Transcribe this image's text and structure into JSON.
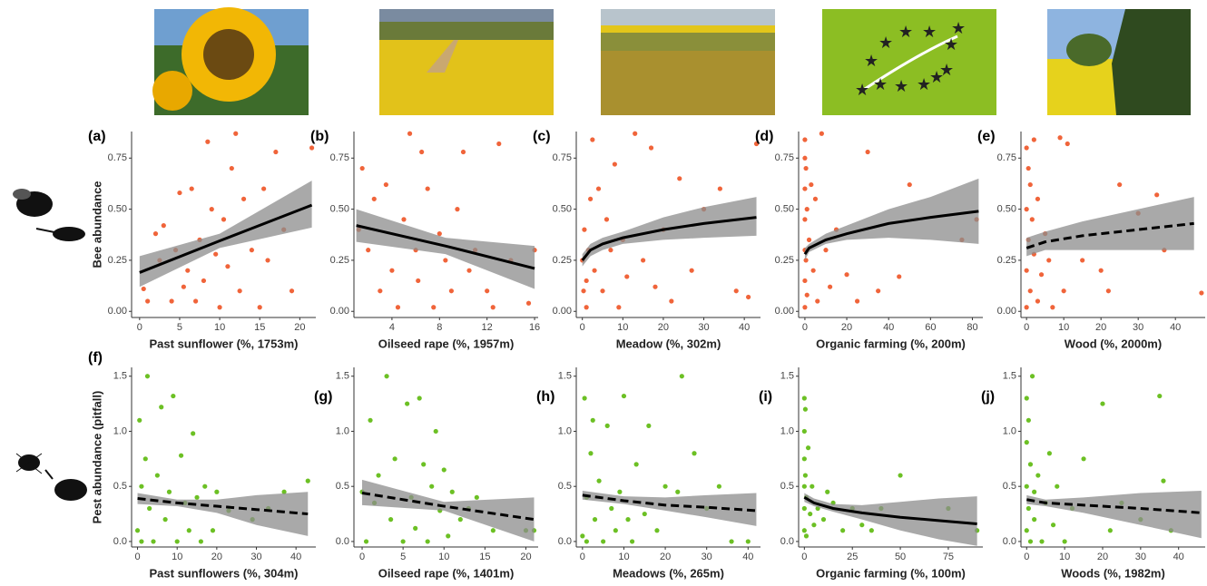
{
  "chart_data": [
    {
      "type": "scatter",
      "label": "(a)",
      "xlabel": "Past sunflower (%, 1753m)",
      "ylabel": "Bee abundance",
      "color": "#f0643a",
      "xlim": [
        -1,
        22
      ],
      "ylim": [
        -0.03,
        0.88
      ],
      "xticks": [
        0,
        5,
        10,
        15,
        20
      ],
      "yticks": [
        {
          "value": 0,
          "label": "0.00"
        },
        {
          "value": 0.25,
          "label": "0.25"
        },
        {
          "value": 0.5,
          "label": "0.50"
        },
        {
          "value": 0.75,
          "label": "0.75"
        }
      ],
      "x": [
        0.5,
        1,
        2,
        2.5,
        3,
        4,
        4.5,
        5,
        5.5,
        6,
        6.5,
        7,
        7.5,
        8,
        8.5,
        9,
        9.5,
        10,
        10.5,
        11,
        11.5,
        12,
        12.5,
        13,
        14,
        15,
        15.5,
        16,
        17,
        18,
        19,
        21.5
      ],
      "values": [
        0.11,
        0.05,
        0.38,
        0.25,
        0.42,
        0.05,
        0.3,
        0.58,
        0.12,
        0.2,
        0.6,
        0.05,
        0.35,
        0.15,
        0.83,
        0.5,
        0.28,
        0.02,
        0.45,
        0.22,
        0.7,
        0.87,
        0.1,
        0.55,
        0.3,
        0.02,
        0.6,
        0.25,
        0.78,
        0.4,
        0.1,
        0.8
      ],
      "fit": {
        "dashed": false,
        "x": [
          0,
          10,
          21.5
        ],
        "values": [
          0.19,
          0.345,
          0.52
        ],
        "lower": [
          0.12,
          0.31,
          0.41
        ],
        "upper": [
          0.27,
          0.38,
          0.64
        ]
      }
    },
    {
      "type": "scatter",
      "label": "(b)",
      "xlabel": "Oilseed rape (%, 1957m)",
      "color": "#f0643a",
      "xlim": [
        0.8,
        16.3
      ],
      "ylim": [
        -0.03,
        0.88
      ],
      "xticks": [
        4,
        8,
        12,
        16
      ],
      "yticks": [
        {
          "value": 0,
          "label": "0.00"
        },
        {
          "value": 0.25,
          "label": "0.25"
        },
        {
          "value": 0.5,
          "label": "0.50"
        },
        {
          "value": 0.75,
          "label": "0.75"
        }
      ],
      "x": [
        1.2,
        1.5,
        2,
        2.5,
        3,
        3.5,
        4,
        4.5,
        5,
        5.5,
        6,
        6.2,
        6.5,
        7,
        7.5,
        8,
        8.5,
        9,
        9.5,
        10,
        10.5,
        11,
        12,
        12.5,
        13,
        14,
        15.5,
        16
      ],
      "values": [
        0.4,
        0.7,
        0.3,
        0.55,
        0.1,
        0.62,
        0.2,
        0.02,
        0.45,
        0.87,
        0.3,
        0.15,
        0.78,
        0.6,
        0.02,
        0.38,
        0.25,
        0.1,
        0.5,
        0.78,
        0.2,
        0.3,
        0.1,
        0.02,
        0.82,
        0.25,
        0.04,
        0.3
      ],
      "fit": {
        "dashed": false,
        "x": [
          1,
          8.5,
          16
        ],
        "values": [
          0.42,
          0.32,
          0.21
        ],
        "lower": [
          0.34,
          0.28,
          0.11
        ],
        "upper": [
          0.5,
          0.36,
          0.32
        ]
      }
    },
    {
      "type": "scatter",
      "label": "(c)",
      "xlabel": "Meadow (%, 302m)",
      "color": "#f0643a",
      "xlim": [
        -1.5,
        44
      ],
      "ylim": [
        -0.03,
        0.88
      ],
      "xticks": [
        0,
        10,
        20,
        30,
        40
      ],
      "yticks": [
        {
          "value": 0,
          "label": "0.00"
        },
        {
          "value": 0.25,
          "label": "0.25"
        },
        {
          "value": 0.5,
          "label": "0.50"
        },
        {
          "value": 0.75,
          "label": "0.75"
        }
      ],
      "x": [
        0,
        0.3,
        0.5,
        1,
        1,
        1.5,
        2,
        2.5,
        3,
        4,
        5,
        6,
        7,
        8,
        9,
        10,
        11,
        13,
        15,
        17,
        18,
        20,
        22,
        24,
        27,
        30,
        34,
        38,
        41,
        43
      ],
      "values": [
        0.25,
        0.1,
        0.4,
        0.15,
        0.02,
        0.3,
        0.55,
        0.84,
        0.2,
        0.6,
        0.1,
        0.45,
        0.3,
        0.72,
        0.02,
        0.35,
        0.17,
        0.87,
        0.25,
        0.8,
        0.12,
        0.4,
        0.05,
        0.65,
        0.2,
        0.5,
        0.6,
        0.1,
        0.07,
        0.82
      ],
      "fit": {
        "dashed": false,
        "x": [
          0,
          2,
          5,
          10,
          20,
          30,
          43
        ],
        "values": [
          0.25,
          0.3,
          0.33,
          0.36,
          0.4,
          0.43,
          0.46
        ],
        "lower": [
          0.22,
          0.27,
          0.3,
          0.33,
          0.35,
          0.36,
          0.37
        ],
        "upper": [
          0.28,
          0.33,
          0.36,
          0.39,
          0.46,
          0.51,
          0.56
        ]
      }
    },
    {
      "type": "scatter",
      "label": "(d)",
      "xlabel": "Organic farming (%, 200m)",
      "color": "#f0643a",
      "xlim": [
        -3,
        85
      ],
      "ylim": [
        -0.03,
        0.88
      ],
      "xticks": [
        0,
        20,
        40,
        60,
        80
      ],
      "yticks": [
        {
          "value": 0,
          "label": "0.00"
        },
        {
          "value": 0.25,
          "label": "0.25"
        },
        {
          "value": 0.5,
          "label": "0.50"
        },
        {
          "value": 0.75,
          "label": "0.75"
        }
      ],
      "x": [
        0,
        0,
        0,
        0,
        0,
        0,
        0,
        0.5,
        0.5,
        1,
        1,
        2,
        3,
        4,
        5,
        6,
        8,
        10,
        12,
        15,
        20,
        25,
        30,
        35,
        45,
        50,
        75,
        82
      ],
      "values": [
        0.84,
        0.75,
        0.6,
        0.45,
        0.3,
        0.15,
        0.02,
        0.7,
        0.25,
        0.5,
        0.08,
        0.35,
        0.62,
        0.2,
        0.55,
        0.05,
        0.87,
        0.3,
        0.12,
        0.4,
        0.18,
        0.05,
        0.78,
        0.1,
        0.17,
        0.62,
        0.35,
        0.45
      ],
      "fit": {
        "dashed": false,
        "x": [
          0,
          2,
          10,
          20,
          40,
          60,
          83
        ],
        "values": [
          0.28,
          0.31,
          0.35,
          0.38,
          0.43,
          0.46,
          0.49
        ],
        "lower": [
          0.25,
          0.29,
          0.33,
          0.35,
          0.36,
          0.35,
          0.33
        ],
        "upper": [
          0.31,
          0.33,
          0.38,
          0.42,
          0.5,
          0.56,
          0.65
        ]
      }
    },
    {
      "type": "scatter",
      "label": "(e)",
      "xlabel": "Wood (%, 2000m)",
      "color": "#f0643a",
      "xlim": [
        -1.5,
        48
      ],
      "ylim": [
        -0.03,
        0.88
      ],
      "xticks": [
        0,
        10,
        20,
        30,
        40
      ],
      "yticks": [
        {
          "value": 0,
          "label": "0.00"
        },
        {
          "value": 0.25,
          "label": "0.25"
        },
        {
          "value": 0.5,
          "label": "0.50"
        },
        {
          "value": 0.75,
          "label": "0.75"
        }
      ],
      "x": [
        0,
        0,
        0,
        0,
        0.5,
        0.5,
        1,
        1,
        1.5,
        2,
        2,
        3,
        3,
        4,
        5,
        6,
        7,
        9,
        10,
        11,
        15,
        20,
        22,
        25,
        30,
        35,
        37,
        47
      ],
      "values": [
        0.8,
        0.5,
        0.2,
        0.02,
        0.7,
        0.35,
        0.62,
        0.1,
        0.45,
        0.28,
        0.84,
        0.05,
        0.55,
        0.18,
        0.38,
        0.25,
        0.02,
        0.85,
        0.1,
        0.82,
        0.25,
        0.2,
        0.1,
        0.62,
        0.48,
        0.57,
        0.3,
        0.09
      ],
      "fit": {
        "dashed": true,
        "x": [
          0,
          5,
          15,
          30,
          45
        ],
        "values": [
          0.31,
          0.34,
          0.37,
          0.4,
          0.43
        ],
        "lower": [
          0.27,
          0.3,
          0.3,
          0.3,
          0.3
        ],
        "upper": [
          0.36,
          0.39,
          0.44,
          0.5,
          0.56
        ]
      }
    },
    {
      "type": "scatter",
      "label": "(f)",
      "xlabel": "Past sunflowers (%, 304m)",
      "ylabel": "Pest abundance (pitfall)",
      "color": "#6cc024",
      "xlim": [
        -1.5,
        45
      ],
      "ylim": [
        -0.05,
        1.58
      ],
      "xticks": [
        0,
        10,
        20,
        30,
        40
      ],
      "yticks": [
        {
          "value": 0,
          "label": "0.0"
        },
        {
          "value": 0.5,
          "label": "0.5"
        },
        {
          "value": 1,
          "label": "1.0"
        },
        {
          "value": 1.5,
          "label": "1.5"
        }
      ],
      "x": [
        0,
        0.5,
        1,
        1,
        2,
        2.5,
        3,
        4,
        5,
        6,
        7,
        8,
        9,
        10,
        11,
        12,
        13,
        14,
        15,
        16,
        17,
        19,
        20,
        23,
        29,
        33,
        37,
        43
      ],
      "values": [
        0.1,
        1.1,
        0.5,
        0,
        0.75,
        1.5,
        0.3,
        0,
        0.6,
        1.22,
        0.2,
        0.45,
        1.32,
        0,
        0.78,
        0.35,
        0.1,
        0.98,
        0.4,
        0,
        0.5,
        0.1,
        0.45,
        0.28,
        0.2,
        0.3,
        0.45,
        0.55
      ],
      "fit": {
        "dashed": true,
        "x": [
          0,
          10,
          20,
          30,
          43
        ],
        "values": [
          0.39,
          0.35,
          0.32,
          0.29,
          0.25
        ],
        "lower": [
          0.34,
          0.32,
          0.26,
          0.15,
          0.05
        ],
        "upper": [
          0.44,
          0.38,
          0.38,
          0.42,
          0.45
        ]
      }
    },
    {
      "type": "scatter",
      "label": "(g)",
      "xlabel": "Oilseed rape (%, 1401m)",
      "color": "#6cc024",
      "xlim": [
        -1,
        21.5
      ],
      "ylim": [
        -0.05,
        1.58
      ],
      "xticks": [
        0,
        5,
        10,
        15,
        20
      ],
      "yticks": [
        {
          "value": 0,
          "label": "0.0"
        },
        {
          "value": 0.5,
          "label": "0.5"
        },
        {
          "value": 1,
          "label": "1.0"
        },
        {
          "value": 1.5,
          "label": "1.5"
        }
      ],
      "x": [
        0,
        0.5,
        1,
        1.5,
        2,
        3,
        3.5,
        4,
        5,
        5.5,
        6,
        6.5,
        7,
        7.5,
        8,
        8.5,
        9,
        9.5,
        10,
        10.5,
        11,
        12,
        13,
        14,
        16,
        20,
        21
      ],
      "values": [
        0.45,
        0,
        1.1,
        0.35,
        0.6,
        1.5,
        0.2,
        0.75,
        0,
        1.25,
        0.4,
        0.12,
        1.3,
        0.7,
        0,
        0.5,
        1.0,
        0.28,
        0.65,
        0.05,
        0.45,
        0.2,
        0.3,
        0.4,
        0.1,
        0.1,
        0.1
      ],
      "fit": {
        "dashed": true,
        "x": [
          0,
          10,
          21
        ],
        "values": [
          0.44,
          0.32,
          0.2
        ],
        "lower": [
          0.33,
          0.28,
          0
        ],
        "upper": [
          0.56,
          0.36,
          0.4
        ]
      }
    },
    {
      "type": "scatter",
      "label": "(h)",
      "xlabel": "Meadows (%, 265m)",
      "color": "#6cc024",
      "xlim": [
        -1.5,
        43
      ],
      "ylim": [
        -0.05,
        1.58
      ],
      "xticks": [
        0,
        10,
        20,
        30,
        40
      ],
      "yticks": [
        {
          "value": 0,
          "label": "0.0"
        },
        {
          "value": 0.5,
          "label": "0.5"
        },
        {
          "value": 1,
          "label": "1.0"
        },
        {
          "value": 1.5,
          "label": "1.5"
        }
      ],
      "x": [
        0,
        0.5,
        1,
        1,
        2,
        2.5,
        3,
        4,
        5,
        6,
        7,
        8,
        9,
        10,
        11,
        12,
        13,
        15,
        16,
        18,
        20,
        23,
        24,
        27,
        30,
        33,
        36,
        40
      ],
      "values": [
        0.05,
        1.3,
        0.4,
        0,
        0.8,
        1.1,
        0.2,
        0.55,
        0,
        1.05,
        0.3,
        0.1,
        0.45,
        1.32,
        0.2,
        0,
        0.7,
        0.25,
        1.05,
        0.1,
        0.5,
        0.45,
        1.5,
        0.8,
        0.3,
        0.5,
        0,
        0
      ],
      "fit": {
        "dashed": true,
        "x": [
          0,
          10,
          20,
          30,
          42
        ],
        "values": [
          0.42,
          0.37,
          0.33,
          0.31,
          0.28
        ],
        "lower": [
          0.38,
          0.34,
          0.28,
          0.22,
          0.14
        ],
        "upper": [
          0.46,
          0.41,
          0.4,
          0.42,
          0.44
        ]
      }
    },
    {
      "type": "scatter",
      "label": "(i)",
      "xlabel": "Organic farming (%, 100m)",
      "color": "#6cc024",
      "xlim": [
        -3,
        93
      ],
      "ylim": [
        -0.05,
        1.58
      ],
      "xticks": [
        0,
        25,
        50,
        75
      ],
      "yticks": [
        {
          "value": 0,
          "label": "0.0"
        },
        {
          "value": 0.5,
          "label": "0.5"
        },
        {
          "value": 1,
          "label": "1.0"
        },
        {
          "value": 1.5,
          "label": "1.5"
        }
      ],
      "x": [
        0,
        0,
        0,
        0,
        0,
        0,
        0.5,
        0.5,
        1,
        1,
        2,
        3,
        4,
        5,
        7,
        10,
        12,
        15,
        20,
        25,
        30,
        35,
        40,
        50,
        75,
        90
      ],
      "values": [
        1.3,
        1.0,
        0.75,
        0.5,
        0.3,
        0.1,
        1.2,
        0.6,
        0.4,
        0.05,
        0.85,
        0.25,
        0.5,
        0.15,
        0.3,
        0.2,
        0.45,
        0.35,
        0.1,
        0.3,
        0.15,
        0.1,
        0.3,
        0.6,
        0.3,
        0.1
      ],
      "fit": {
        "dashed": false,
        "x": [
          0,
          5,
          15,
          30,
          50,
          70,
          90
        ],
        "values": [
          0.4,
          0.35,
          0.3,
          0.26,
          0.22,
          0.19,
          0.16
        ],
        "lower": [
          0.36,
          0.32,
          0.27,
          0.2,
          0.1,
          0.02,
          -0.04
        ],
        "upper": [
          0.44,
          0.39,
          0.34,
          0.33,
          0.36,
          0.39,
          0.41
        ]
      }
    },
    {
      "type": "scatter",
      "label": "(j)",
      "xlabel": "Woods (%, 1982m)",
      "color": "#6cc024",
      "xlim": [
        -1.5,
        47
      ],
      "ylim": [
        -0.05,
        1.58
      ],
      "xticks": [
        0,
        10,
        20,
        30,
        40
      ],
      "yticks": [
        {
          "value": 0,
          "label": "0.0"
        },
        {
          "value": 0.5,
          "label": "0.5"
        },
        {
          "value": 1,
          "label": "1.0"
        },
        {
          "value": 1.5,
          "label": "1.5"
        }
      ],
      "x": [
        0,
        0,
        0,
        0,
        0.5,
        0.5,
        1,
        1,
        1.5,
        2,
        2,
        3,
        4,
        5,
        6,
        7,
        8,
        10,
        12,
        15,
        20,
        22,
        25,
        30,
        35,
        36,
        38
      ],
      "values": [
        1.3,
        0.9,
        0.5,
        0.1,
        1.1,
        0.3,
        0.7,
        0,
        1.5,
        0.45,
        0.2,
        0.6,
        0,
        0.35,
        0.8,
        0.15,
        0.5,
        0,
        0.3,
        0.75,
        1.25,
        0.1,
        0.35,
        0.2,
        1.32,
        0.55,
        0.1
      ],
      "fit": {
        "dashed": true,
        "x": [
          0,
          5,
          15,
          30,
          46
        ],
        "values": [
          0.38,
          0.35,
          0.33,
          0.3,
          0.26
        ],
        "lower": [
          0.34,
          0.32,
          0.26,
          0.15,
          0.03
        ],
        "upper": [
          0.42,
          0.38,
          0.4,
          0.44,
          0.46
        ]
      }
    }
  ]
}
